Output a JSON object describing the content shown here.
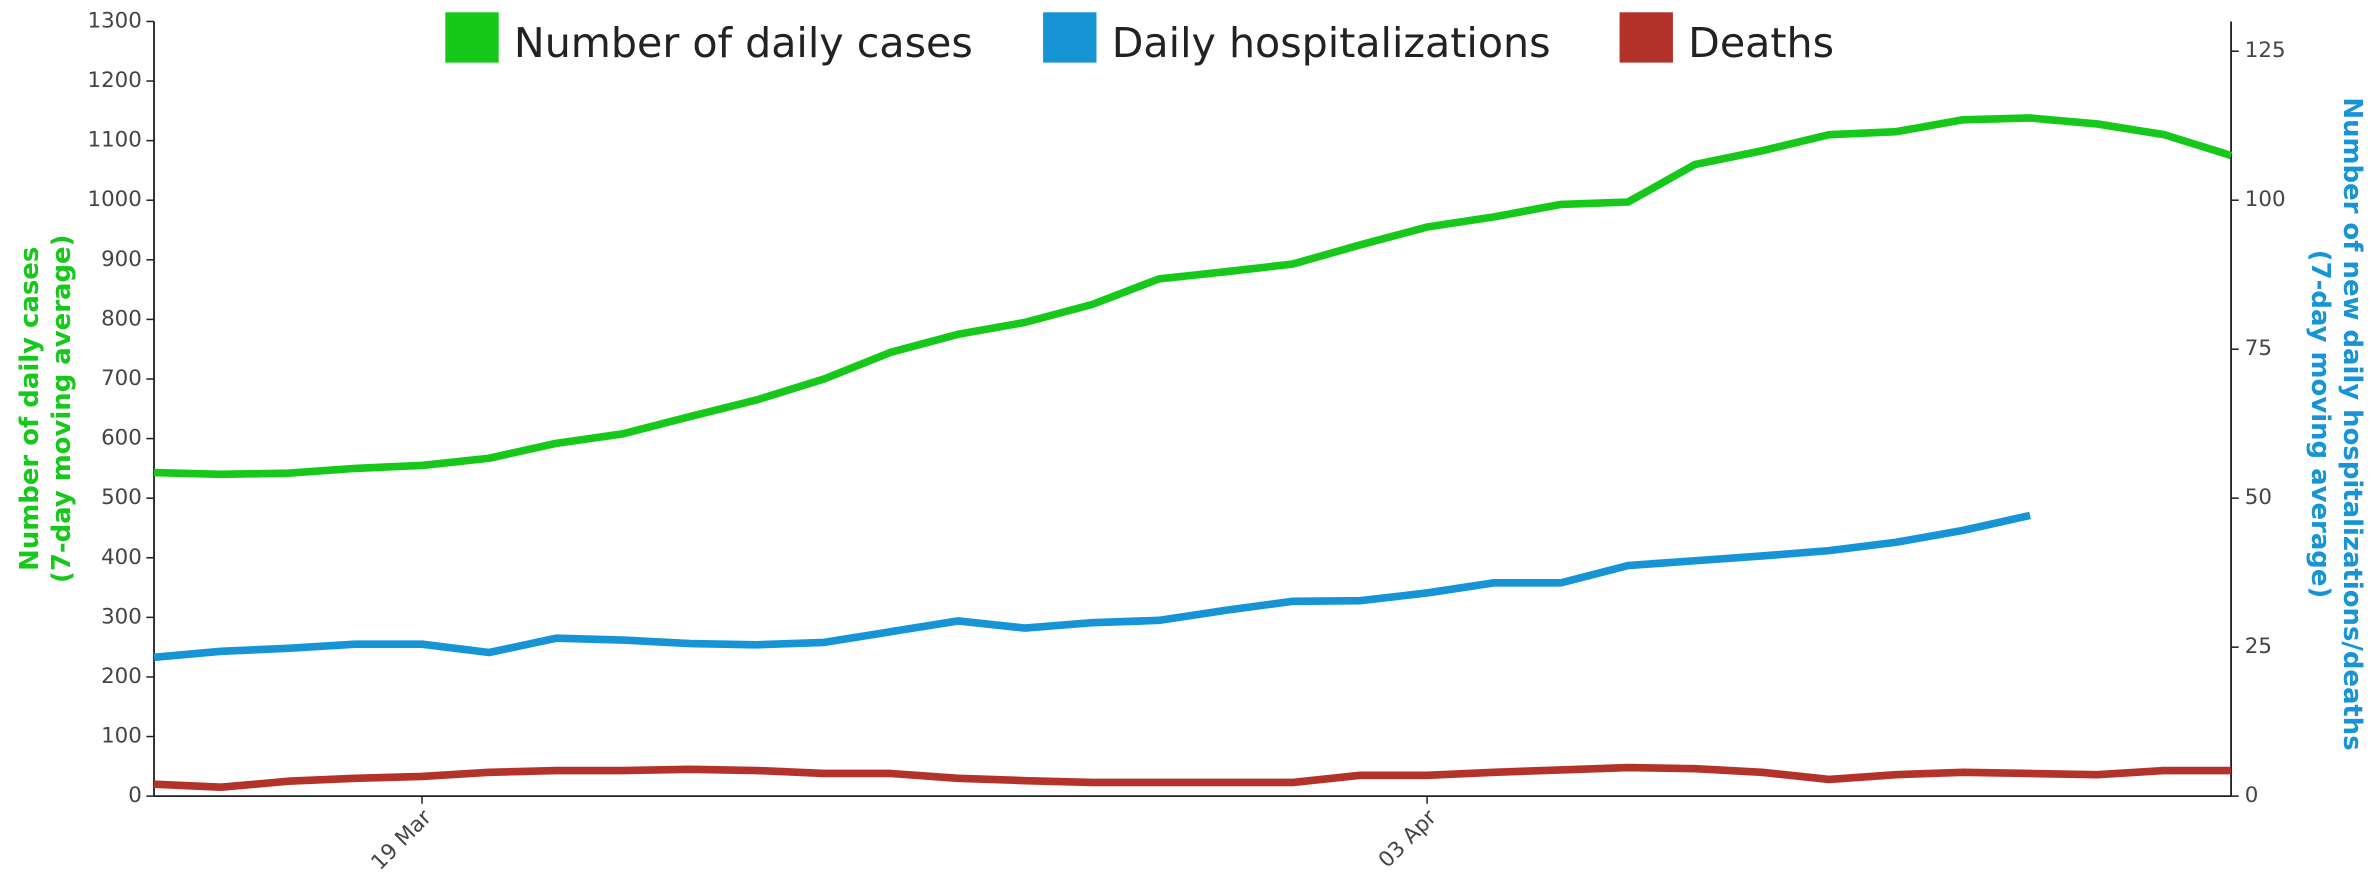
{
  "chart_data": {
    "type": "line",
    "x": [
      "15 Mar",
      "16 Mar",
      "17 Mar",
      "18 Mar",
      "19 Mar",
      "20 Mar",
      "21 Mar",
      "22 Mar",
      "23 Mar",
      "24 Mar",
      "25 Mar",
      "26 Mar",
      "27 Mar",
      "28 Mar",
      "29 Mar",
      "30 Mar",
      "31 Mar",
      "01 Apr",
      "02 Apr",
      "03 Apr",
      "04 Apr",
      "05 Apr",
      "06 Apr",
      "07 Apr",
      "08 Apr",
      "09 Apr",
      "10 Apr",
      "11 Apr",
      "12 Apr",
      "13 Apr",
      "14 Apr",
      "15 Apr"
    ],
    "xticks": [
      "19 Mar",
      "03 Apr"
    ],
    "ylabel": [
      "Number of daily cases",
      "(7-day moving average)"
    ],
    "y2label": [
      "Number of new daily hospitalizations/deaths",
      "(7-day moving average)"
    ],
    "ylim": [
      0,
      1300
    ],
    "yticks": [
      0,
      100,
      200,
      300,
      400,
      500,
      600,
      700,
      800,
      900,
      1000,
      1100,
      1200,
      1300
    ],
    "y2lim": [
      0,
      130
    ],
    "y2ticks": [
      0,
      25,
      50,
      75,
      100,
      125
    ],
    "series": [
      {
        "name": "Number of daily cases",
        "color": "#16c81a",
        "values": [
          543,
          540,
          542,
          550,
          555,
          567,
          592,
          608,
          637,
          665,
          700,
          745,
          775,
          795,
          825,
          868,
          880,
          893,
          925,
          955,
          972,
          993,
          997,
          1060,
          1083,
          1110,
          1115,
          1135,
          1138,
          1128,
          1110,
          1075
        ]
      },
      {
        "name": "Daily hospitalizations",
        "color": "#1794d6",
        "axis": "y2",
        "values": [
          23.3,
          24.3,
          24.8,
          25.5,
          25.5,
          24.1,
          26.5,
          26.2,
          25.6,
          25.4,
          25.8,
          27.6,
          29.4,
          28.2,
          29.1,
          29.5,
          31.2,
          32.7,
          32.8,
          34.1,
          35.8,
          35.8,
          38.7,
          39.5,
          40.3,
          41.2,
          42.6,
          44.6,
          47.1,
          null,
          null,
          null
        ]
      },
      {
        "name": "Deaths",
        "color": "#b3332b",
        "axis": "y2",
        "values": [
          2.0,
          1.5,
          2.5,
          3.0,
          3.3,
          4.0,
          4.3,
          4.3,
          4.5,
          4.3,
          3.8,
          3.8,
          3.0,
          2.6,
          2.3,
          2.3,
          2.3,
          2.3,
          3.5,
          3.5,
          4.0,
          4.4,
          4.8,
          4.6,
          4.0,
          2.8,
          3.6,
          4.0,
          3.8,
          3.6,
          4.3,
          4.3
        ]
      }
    ]
  }
}
